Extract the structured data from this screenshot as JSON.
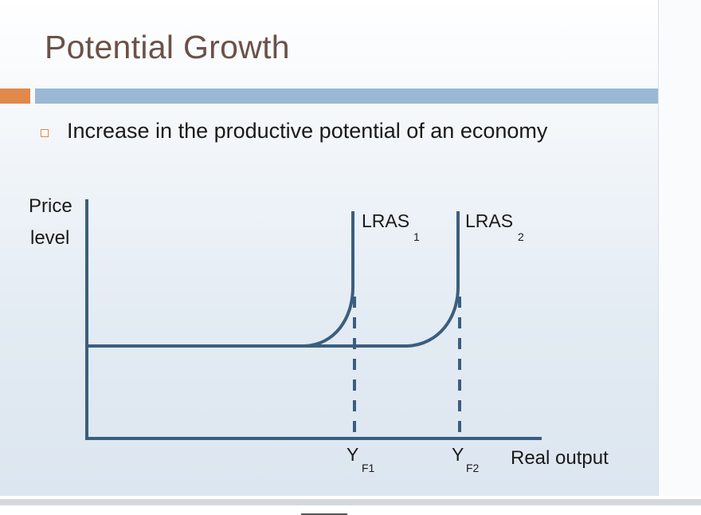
{
  "slide": {
    "title": "Potential Growth",
    "bullet": "Increase in the productive potential of an economy",
    "accent_color": "#e0894b",
    "bar_color": "#9ab8d4",
    "title_color": "#6b5148"
  },
  "diagram": {
    "y_axis_label_line1": "Price",
    "y_axis_label_line2": "level",
    "x_axis_label": "Real output",
    "curve1_label": "LRAS",
    "curve1_sub": "1",
    "curve2_label": "LRAS",
    "curve2_sub": "2",
    "output1_label": "Y",
    "output1_sub": "F1",
    "output2_label": "Y",
    "output2_sub": "F2",
    "line_color": "#3b5e7e",
    "axis_color": "#3b5e7e"
  }
}
